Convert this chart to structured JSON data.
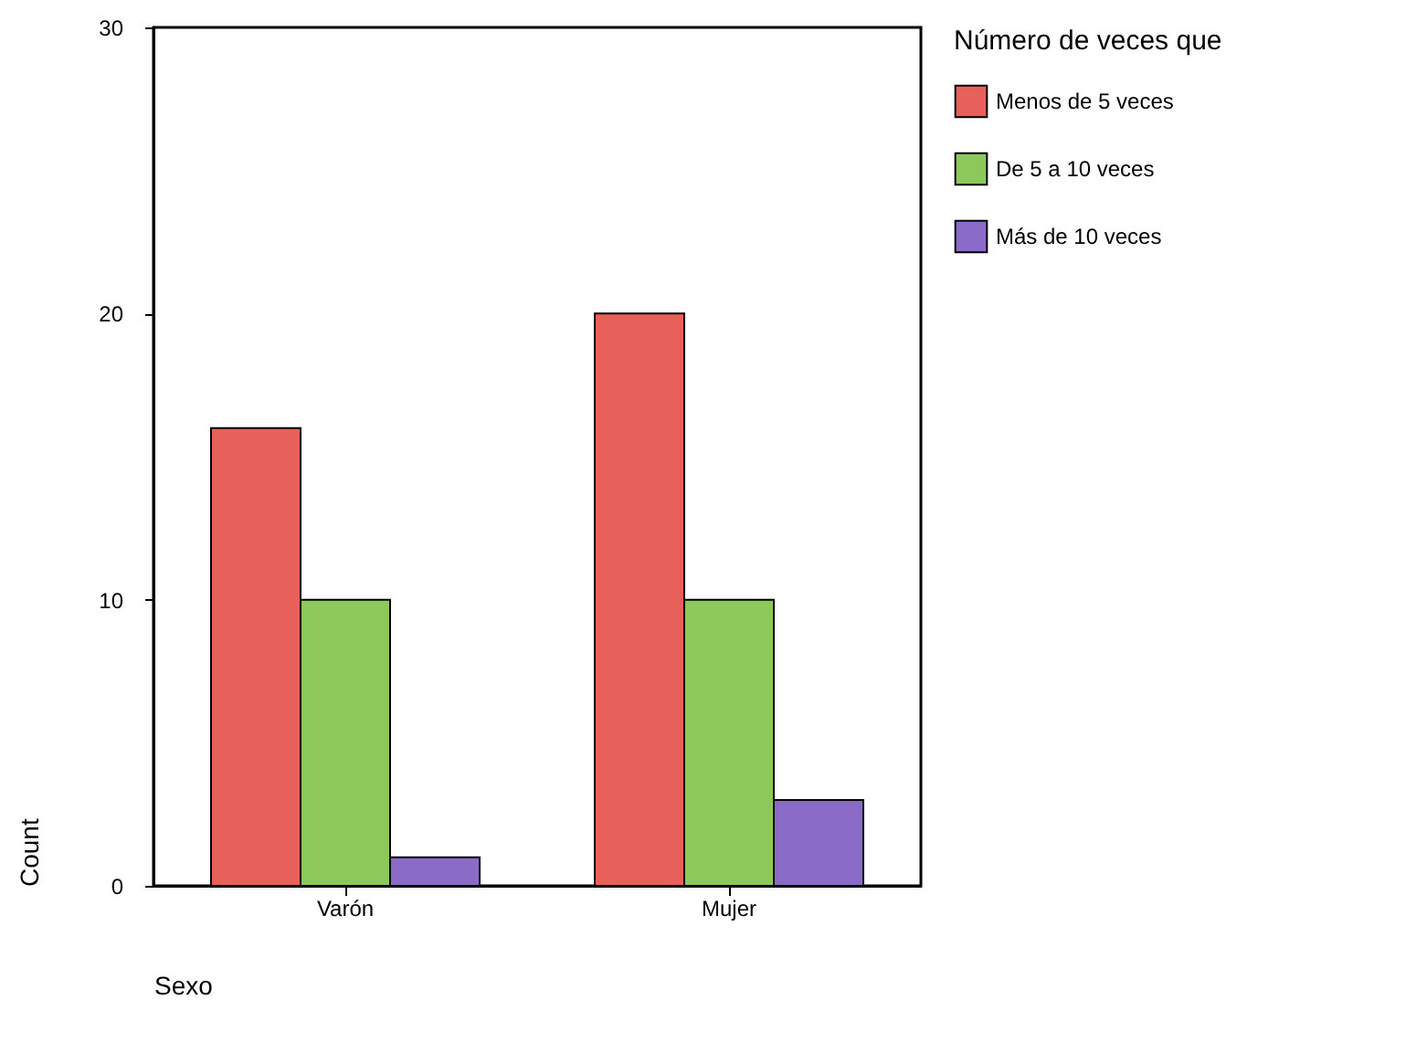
{
  "chart_data": {
    "type": "bar",
    "xlabel": "Sexo",
    "ylabel": "Count",
    "legend_title": "Número de veces que",
    "categories": [
      "Varón",
      "Mujer"
    ],
    "series": [
      {
        "name": "Menos de 5 veces",
        "color": "#e8605a",
        "values": [
          16,
          20
        ]
      },
      {
        "name": "De 5 a 10 veces",
        "color": "#8cc85a",
        "values": [
          10,
          10
        ]
      },
      {
        "name": "Más de 10 veces",
        "color": "#8a6cc8",
        "values": [
          1,
          3
        ]
      }
    ],
    "ylim": [
      0,
      30
    ],
    "yticks": [
      0,
      10,
      20,
      30
    ],
    "grid": false,
    "legend": "right"
  }
}
